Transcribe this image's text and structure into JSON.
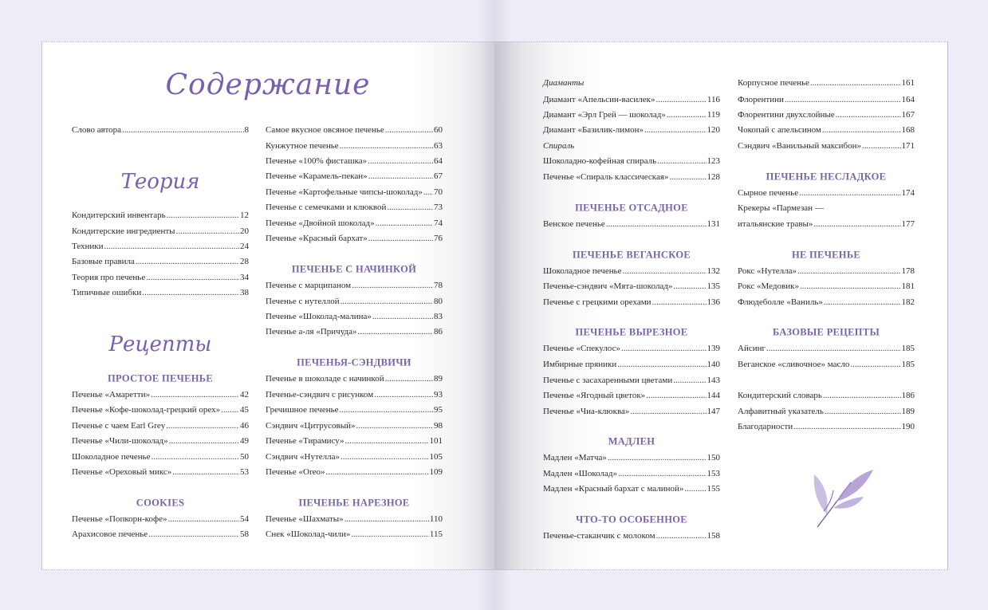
{
  "title": "Содержание",
  "accent_color": "#7a63a6",
  "columns": [
    [
      {
        "type": "entry",
        "text": "Слово автора",
        "page": "8"
      },
      {
        "type": "script",
        "text": "Теория"
      },
      {
        "type": "entry",
        "text": "Кондитерский инвентарь",
        "page": "12"
      },
      {
        "type": "entry",
        "text": "Кондитерские ингредиенты",
        "page": "20"
      },
      {
        "type": "entry",
        "text": "Техники",
        "page": "24"
      },
      {
        "type": "entry",
        "text": "Базовые правила",
        "page": "28"
      },
      {
        "type": "entry",
        "text": "Теория про печенье",
        "page": "34"
      },
      {
        "type": "entry",
        "text": "Типичные ошибки",
        "page": "38"
      },
      {
        "type": "script",
        "text": "Рецепты"
      },
      {
        "type": "heading",
        "text": "ПРОСТОЕ ПЕЧЕНЬЕ"
      },
      {
        "type": "entry",
        "text": "Печенье «Амаретти»",
        "page": "42"
      },
      {
        "type": "entry",
        "text": "Печенье «Кофе-шоколад-грецкий орех»",
        "page": "45"
      },
      {
        "type": "entry",
        "text": "Печенье с чаем Earl Grey",
        "page": "46"
      },
      {
        "type": "entry",
        "text": "Печенье «Чили-шоколад»",
        "page": "49"
      },
      {
        "type": "entry",
        "text": "Шоколадное печенье",
        "page": "50"
      },
      {
        "type": "entry",
        "text": "Печенье «Ореховый микс»",
        "page": "53"
      },
      {
        "type": "heading",
        "text": "COOKIES"
      },
      {
        "type": "entry",
        "text": "Печенье «Попкорн-кофе»",
        "page": "54"
      },
      {
        "type": "entry",
        "text": "Арахисовое печенье",
        "page": "58"
      }
    ],
    [
      {
        "type": "entry",
        "text": "Самое вкусное овсяное печенье",
        "page": "60"
      },
      {
        "type": "entry",
        "text": "Кунжутное печенье",
        "page": "63"
      },
      {
        "type": "entry",
        "text": "Печенье «100% фисташка»",
        "page": "64"
      },
      {
        "type": "entry",
        "text": "Печенье «Карамель-пекан»",
        "page": "67"
      },
      {
        "type": "entry",
        "text": "Печенье «Картофельные чипсы-шоколад»",
        "page": "70"
      },
      {
        "type": "entry",
        "text": "Печенье с семечками и клюквой",
        "page": "73"
      },
      {
        "type": "entry",
        "text": "Печенье «Двойной шоколад»",
        "page": "74"
      },
      {
        "type": "entry",
        "text": "Печенье «Красный бархат»",
        "page": "76"
      },
      {
        "type": "heading",
        "text": "ПЕЧЕНЬЕ С НАЧИНКОЙ"
      },
      {
        "type": "entry",
        "text": "Печенье с марципаном",
        "page": "78"
      },
      {
        "type": "entry",
        "text": "Печенье с нутеллой",
        "page": "80"
      },
      {
        "type": "entry",
        "text": "Печенье «Шоколад-малина»",
        "page": "83"
      },
      {
        "type": "entry",
        "text": "Печенье а-ля «Причуда»",
        "page": "86"
      },
      {
        "type": "heading",
        "text": "ПЕЧЕНЬЯ-СЭНДВИЧИ"
      },
      {
        "type": "entry",
        "text": "Печенье в шоколаде с начинкой",
        "page": "89"
      },
      {
        "type": "entry",
        "text": "Печенье-сэндвич с рисунком",
        "page": "93"
      },
      {
        "type": "entry",
        "text": "Гречишное печенье",
        "page": "95"
      },
      {
        "type": "entry",
        "text": "Сэндвич «Цитрусовый»",
        "page": "98"
      },
      {
        "type": "entry",
        "text": "Печенье «Тирамису»",
        "page": "101"
      },
      {
        "type": "entry",
        "text": "Сэндвич «Нутелла»",
        "page": "105"
      },
      {
        "type": "entry",
        "text": "Печенье «Oreo»",
        "page": "109"
      },
      {
        "type": "heading",
        "text": "ПЕЧЕНЬЕ НАРЕЗНОЕ"
      },
      {
        "type": "entry",
        "text": "Печенье «Шахматы»",
        "page": "110"
      },
      {
        "type": "entry",
        "text": "Снек «Шоколад-чили»",
        "page": "115"
      }
    ],
    [
      {
        "type": "italic",
        "text": "Диаманты"
      },
      {
        "type": "entry",
        "text": "Диамант «Апельсин-василек»",
        "page": "116"
      },
      {
        "type": "entry",
        "text": "Диамант «Эрл Грей — шоколад»",
        "page": "119"
      },
      {
        "type": "entry",
        "text": "Диамант «Базилик-лимон»",
        "page": "120"
      },
      {
        "type": "italic",
        "text": "Спираль"
      },
      {
        "type": "entry",
        "text": "Шоколадно-кофейная спираль",
        "page": "123"
      },
      {
        "type": "entry",
        "text": "Печенье «Спираль классическая»",
        "page": "128"
      },
      {
        "type": "heading",
        "text": "ПЕЧЕНЬЕ ОТСАДНОЕ"
      },
      {
        "type": "entry",
        "text": "Венское печенье",
        "page": "131"
      },
      {
        "type": "heading",
        "text": "ПЕЧЕНЬЕ ВЕГАНСКОЕ"
      },
      {
        "type": "entry",
        "text": "Шоколадное печенье",
        "page": "132"
      },
      {
        "type": "entry",
        "text": "Печенье-сэндвич «Мята-шоколад»",
        "page": "135"
      },
      {
        "type": "entry",
        "text": "Печенье с грецкими орехами",
        "page": "136"
      },
      {
        "type": "heading",
        "text": "ПЕЧЕНЬЕ ВЫРЕЗНОЕ"
      },
      {
        "type": "entry",
        "text": "Печенье «Спекулос»",
        "page": "139"
      },
      {
        "type": "entry",
        "text": "Имбирные пряники",
        "page": "140"
      },
      {
        "type": "entry",
        "text": "Печенье с засахаренными цветами",
        "page": "143"
      },
      {
        "type": "entry",
        "text": "Печенье «Ягодный цветок»",
        "page": "144"
      },
      {
        "type": "entry",
        "text": "Печенье «Чиа-клюква»",
        "page": "147"
      },
      {
        "type": "heading",
        "text": "МАДЛЕН"
      },
      {
        "type": "entry",
        "text": "Мадлен «Матча»",
        "page": "150"
      },
      {
        "type": "entry",
        "text": "Мадлен «Шоколад»",
        "page": "153"
      },
      {
        "type": "entry",
        "text": "Мадлен «Красный бархат с малиной»",
        "page": "155"
      },
      {
        "type": "heading",
        "text": "ЧТО-ТО ОСОБЕННОЕ"
      },
      {
        "type": "entry",
        "text": "Печенье-стаканчик с молоком",
        "page": "158"
      }
    ],
    [
      {
        "type": "entry",
        "text": "Корпусное печенье",
        "page": "161"
      },
      {
        "type": "entry",
        "text": "Флорентини",
        "page": "164"
      },
      {
        "type": "entry",
        "text": "Флорентини двухслойные",
        "page": "167"
      },
      {
        "type": "entry",
        "text": "Чокопай с апельсином",
        "page": "168"
      },
      {
        "type": "entry",
        "text": "Сэндвич «Ванильный максибон»",
        "page": "171"
      },
      {
        "type": "heading",
        "text": "ПЕЧЕНЬЕ НЕСЛАДКОЕ"
      },
      {
        "type": "entry",
        "text": "Сырное печенье",
        "page": "174"
      },
      {
        "type": "line",
        "text": "Крекеры «Пармезан —"
      },
      {
        "type": "entry",
        "text": "итальянские травы»",
        "page": "177"
      },
      {
        "type": "heading",
        "text": "НЕ ПЕЧЕНЬЕ"
      },
      {
        "type": "entry",
        "text": "Рокс «Нутелла»",
        "page": "178"
      },
      {
        "type": "entry",
        "text": "Рокс «Медовик»",
        "page": "181"
      },
      {
        "type": "entry",
        "text": "Флюдеболле «Ваниль»",
        "page": "182"
      },
      {
        "type": "heading",
        "text": "БАЗОВЫЕ РЕЦЕПТЫ"
      },
      {
        "type": "entry",
        "text": "Айсинг",
        "page": "185"
      },
      {
        "type": "entry",
        "text": "Веганское «сливочное» масло",
        "page": "185"
      },
      {
        "type": "entry",
        "text": "Кондитерский словарь",
        "page": "186"
      },
      {
        "type": "entry",
        "text": "Алфавитный указатель",
        "page": "189"
      },
      {
        "type": "entry",
        "text": "Благодарности",
        "page": "190"
      }
    ]
  ],
  "decoration": {
    "icon": "leaf-sprig-icon",
    "color": "#9a86c4"
  }
}
